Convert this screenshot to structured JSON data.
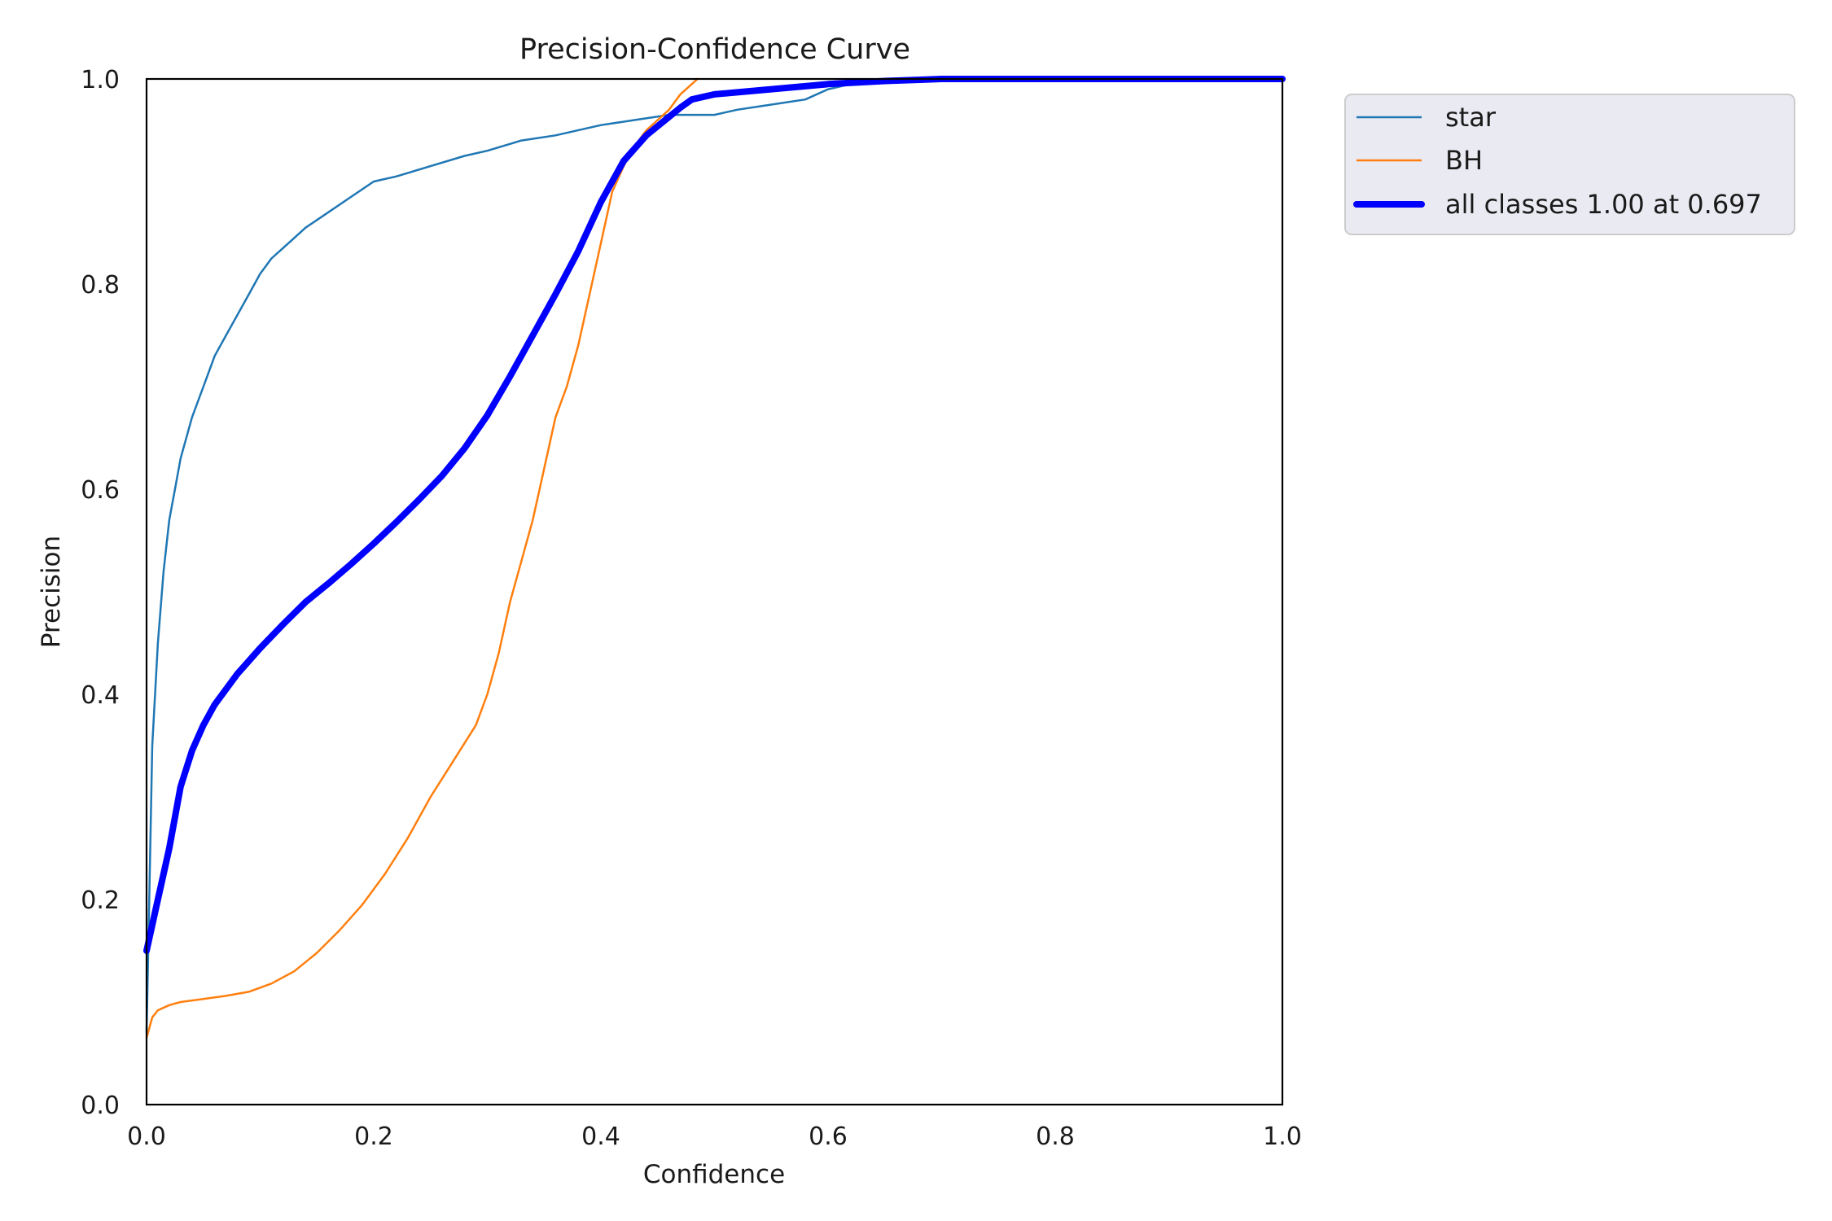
{
  "chart_data": {
    "type": "line",
    "title": "Precision-Confidence Curve",
    "xlabel": "Confidence",
    "ylabel": "Precision",
    "xlim": [
      0,
      1
    ],
    "ylim": [
      0,
      1
    ],
    "xticks": [
      "0.0",
      "0.2",
      "0.4",
      "0.6",
      "0.8",
      "1.0"
    ],
    "yticks": [
      "0.0",
      "0.2",
      "0.4",
      "0.6",
      "0.8",
      "1.0"
    ],
    "grid": false,
    "legend_position": "outside-top-right",
    "series": [
      {
        "name": "star",
        "color": "#1f77b4",
        "x": [
          0.0,
          0.002,
          0.005,
          0.01,
          0.015,
          0.02,
          0.025,
          0.03,
          0.04,
          0.05,
          0.06,
          0.07,
          0.08,
          0.09,
          0.1,
          0.11,
          0.12,
          0.13,
          0.14,
          0.16,
          0.18,
          0.2,
          0.22,
          0.25,
          0.28,
          0.3,
          0.33,
          0.36,
          0.4,
          0.43,
          0.46,
          0.5,
          0.52,
          0.55,
          0.58,
          0.6,
          0.62,
          0.65,
          0.7,
          0.8,
          0.9,
          1.0
        ],
        "y": [
          0.07,
          0.18,
          0.35,
          0.45,
          0.52,
          0.57,
          0.6,
          0.63,
          0.67,
          0.7,
          0.73,
          0.75,
          0.77,
          0.79,
          0.81,
          0.825,
          0.835,
          0.845,
          0.855,
          0.87,
          0.885,
          0.9,
          0.905,
          0.915,
          0.925,
          0.93,
          0.94,
          0.945,
          0.955,
          0.96,
          0.965,
          0.965,
          0.97,
          0.975,
          0.98,
          0.99,
          0.995,
          1.0,
          1.0,
          1.0,
          1.0,
          1.0
        ]
      },
      {
        "name": "BH",
        "color": "#ff7f0e",
        "x": [
          0.0,
          0.005,
          0.01,
          0.02,
          0.03,
          0.05,
          0.07,
          0.09,
          0.11,
          0.13,
          0.15,
          0.17,
          0.19,
          0.21,
          0.23,
          0.25,
          0.27,
          0.29,
          0.3,
          0.31,
          0.32,
          0.33,
          0.34,
          0.35,
          0.36,
          0.37,
          0.38,
          0.39,
          0.4,
          0.41,
          0.42,
          0.43,
          0.44,
          0.45,
          0.46,
          0.47,
          0.48,
          0.485
        ],
        "y": [
          0.065,
          0.085,
          0.092,
          0.097,
          0.1,
          0.103,
          0.106,
          0.11,
          0.118,
          0.13,
          0.148,
          0.17,
          0.195,
          0.225,
          0.26,
          0.3,
          0.335,
          0.37,
          0.4,
          0.44,
          0.49,
          0.53,
          0.57,
          0.62,
          0.67,
          0.7,
          0.74,
          0.79,
          0.84,
          0.89,
          0.915,
          0.935,
          0.95,
          0.96,
          0.97,
          0.985,
          0.995,
          1.0
        ]
      },
      {
        "name": "all classes 1.00 at 0.697",
        "color": "#0000ff",
        "x": [
          0.0,
          0.01,
          0.02,
          0.03,
          0.04,
          0.05,
          0.06,
          0.08,
          0.1,
          0.12,
          0.14,
          0.16,
          0.18,
          0.2,
          0.22,
          0.24,
          0.26,
          0.28,
          0.3,
          0.32,
          0.34,
          0.36,
          0.38,
          0.4,
          0.42,
          0.44,
          0.46,
          0.47,
          0.48,
          0.5,
          0.55,
          0.6,
          0.65,
          0.7,
          0.8,
          0.9,
          1.0
        ],
        "y": [
          0.15,
          0.2,
          0.25,
          0.31,
          0.345,
          0.37,
          0.39,
          0.42,
          0.445,
          0.468,
          0.49,
          0.508,
          0.527,
          0.547,
          0.568,
          0.59,
          0.613,
          0.64,
          0.672,
          0.71,
          0.75,
          0.79,
          0.832,
          0.88,
          0.92,
          0.945,
          0.963,
          0.972,
          0.98,
          0.985,
          0.99,
          0.995,
          0.998,
          1.0,
          1.0,
          1.0,
          1.0
        ]
      }
    ]
  }
}
